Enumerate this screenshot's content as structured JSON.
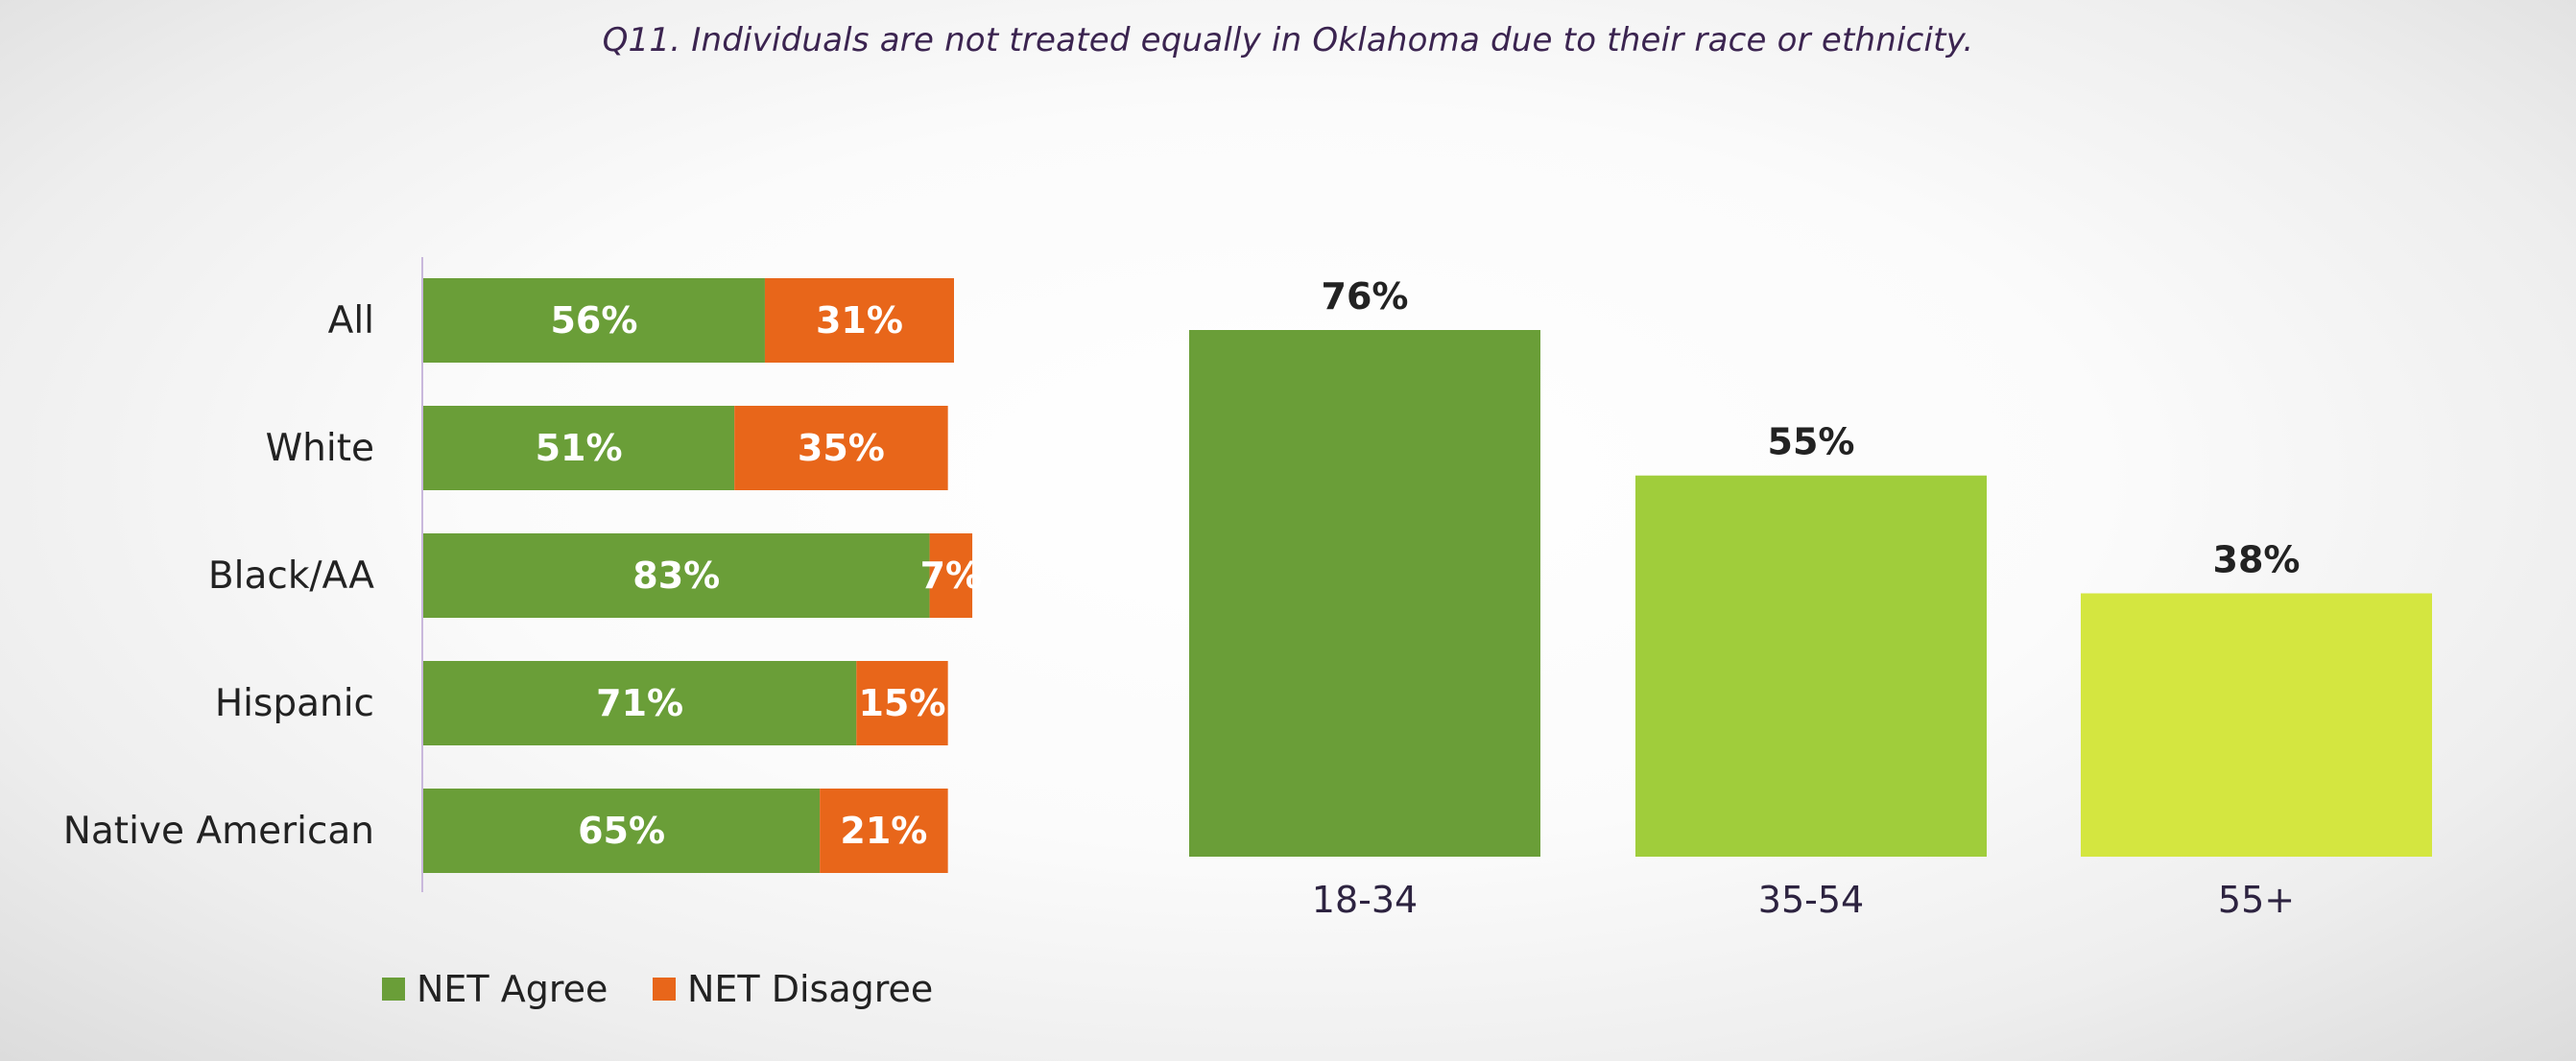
{
  "title": "Q11. Individuals are not treated equally in Oklahoma due to their race or ethnicity.",
  "chart_data": [
    {
      "type": "bar",
      "orientation": "horizontal",
      "stacked": true,
      "categories": [
        "All",
        "White",
        "Black/AA",
        "Hispanic",
        "Native American"
      ],
      "series": [
        {
          "name": "NET Agree",
          "color": "#6a9e38",
          "values": [
            56,
            51,
            83,
            71,
            65
          ],
          "labels": [
            "56%",
            "51%",
            "83%",
            "71%",
            "65%"
          ]
        },
        {
          "name": "NET Disagree",
          "color": "#e8661a",
          "values": [
            31,
            35,
            7,
            15,
            21
          ],
          "labels": [
            "31%",
            "35%",
            "7%",
            "15%",
            "21%"
          ]
        }
      ],
      "xlim": [
        0,
        87
      ],
      "legend": "bottom",
      "grid": false
    },
    {
      "type": "bar",
      "orientation": "vertical",
      "categories": [
        "18-34",
        "35-54",
        "55+"
      ],
      "values": [
        76,
        55,
        38
      ],
      "labels": [
        "76%",
        "55%",
        "38%"
      ],
      "colors": [
        "#6a9e38",
        "#a0cd3b",
        "#d4e640"
      ],
      "ylim": [
        0,
        76
      ],
      "grid": false
    }
  ]
}
